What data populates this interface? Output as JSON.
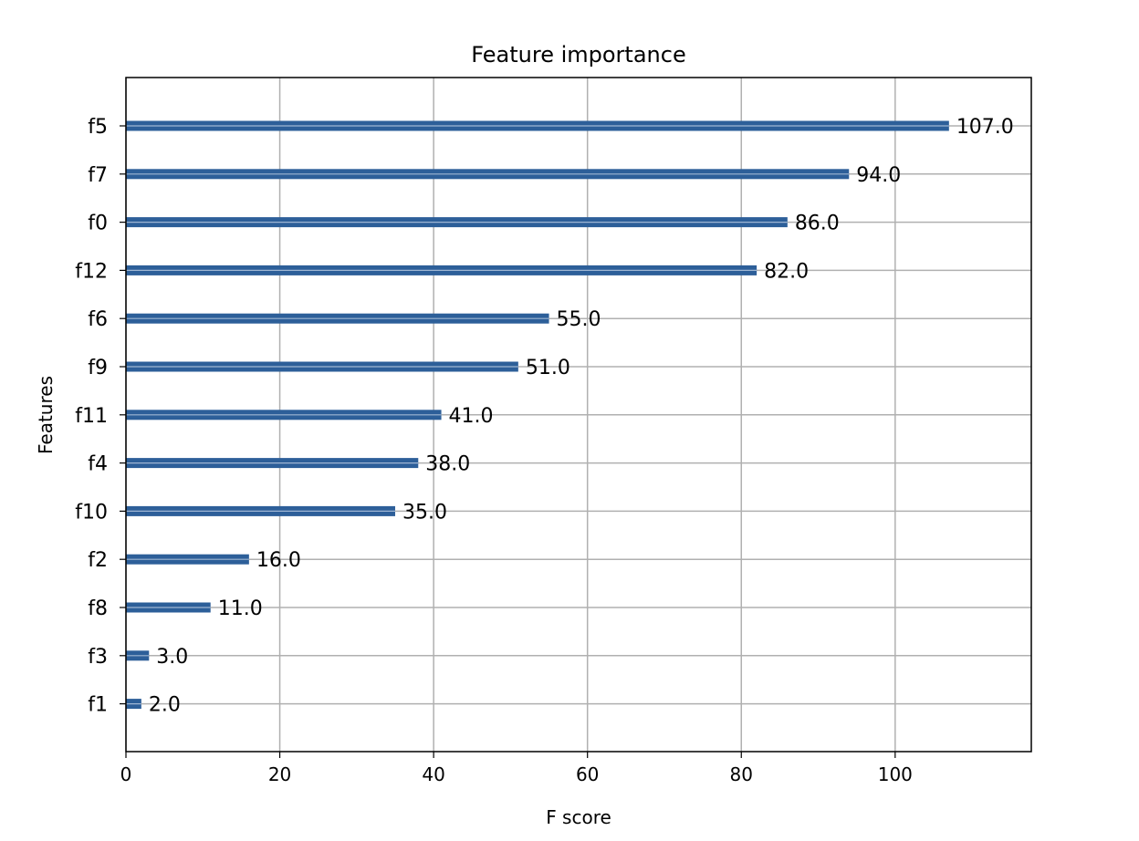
{
  "chart_data": {
    "type": "bar",
    "orientation": "horizontal",
    "title": "Feature importance",
    "xlabel": "F score",
    "ylabel": "Features",
    "categories": [
      "f5",
      "f7",
      "f0",
      "f12",
      "f6",
      "f9",
      "f11",
      "f4",
      "f10",
      "f2",
      "f8",
      "f3",
      "f1"
    ],
    "values": [
      107,
      94,
      86,
      82,
      55,
      51,
      41,
      38,
      35,
      16,
      11,
      3,
      2
    ],
    "value_labels": [
      "107.0",
      "94.0",
      "86.0",
      "82.0",
      "55.0",
      "51.0",
      "41.0",
      "38.0",
      "35.0",
      "16.0",
      "11.0",
      "3.0",
      "2.0"
    ],
    "xlim": [
      0,
      117.7
    ],
    "xticks": [
      0,
      20,
      40,
      60,
      80,
      100
    ],
    "xtick_labels": [
      "0",
      "20",
      "40",
      "60",
      "80",
      "100"
    ],
    "grid": true,
    "bar_color": "#2d5f99",
    "grid_color": "#b0b0b0"
  }
}
